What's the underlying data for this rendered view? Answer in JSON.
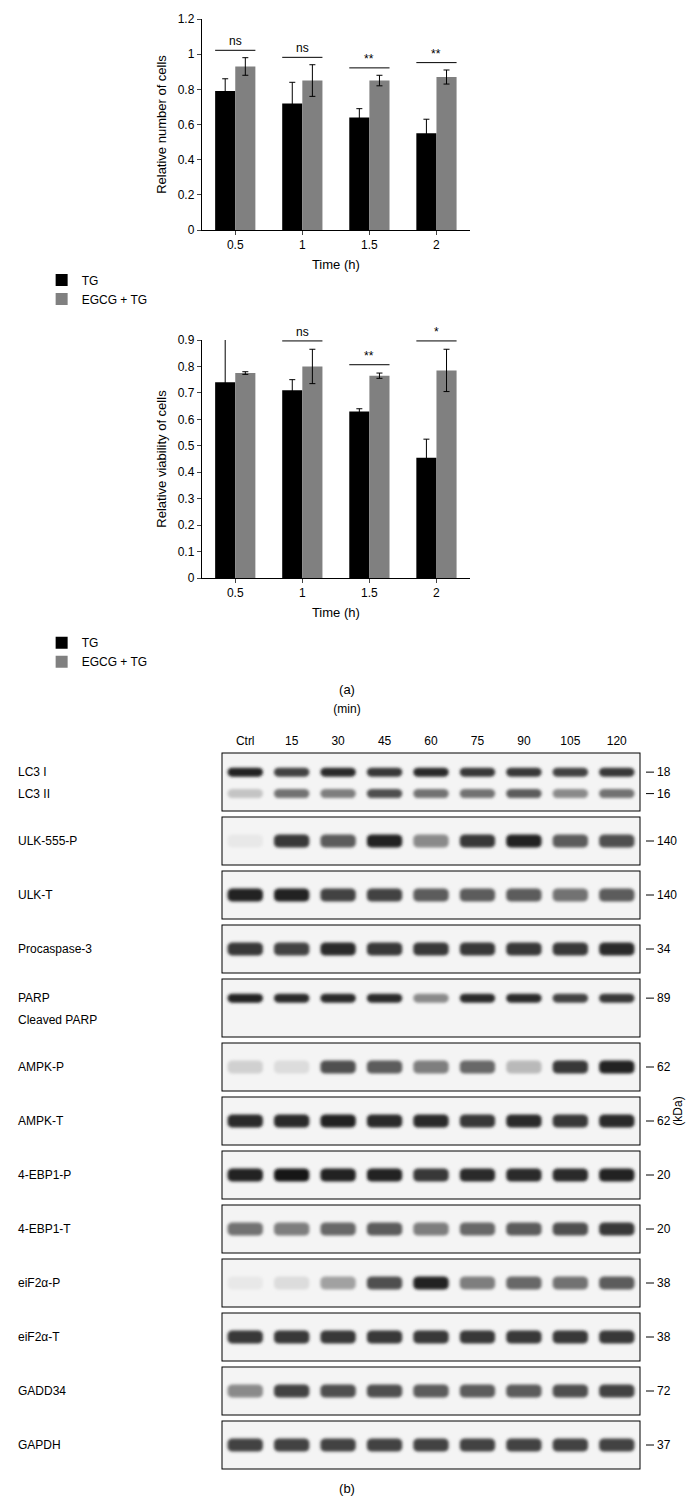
{
  "chart_data": [
    {
      "type": "bar",
      "categories": [
        "0.5",
        "1",
        "1.5",
        "2"
      ],
      "x_label": "Time (h)",
      "y_label": "Relative number of cells",
      "ylim": [
        0,
        1.2
      ],
      "yticks": [
        0,
        0.2,
        0.4,
        0.6,
        0.8,
        1,
        1.2
      ],
      "grid": false,
      "legend": "bottom",
      "series": [
        {
          "name": "TG",
          "color": "#000000",
          "values": [
            0.79,
            0.72,
            0.64,
            0.55
          ],
          "errors": [
            0.07,
            0.12,
            0.05,
            0.08
          ]
        },
        {
          "name": "EGCG + TG",
          "color": "#808080",
          "values": [
            0.93,
            0.85,
            0.85,
            0.87
          ],
          "errors": [
            0.05,
            0.09,
            0.03,
            0.04
          ]
        }
      ],
      "annotations": [
        {
          "category": "0.5",
          "text": "ns"
        },
        {
          "category": "1",
          "text": "ns"
        },
        {
          "category": "1.5",
          "text": "**"
        },
        {
          "category": "2",
          "text": "**"
        }
      ]
    },
    {
      "type": "bar",
      "categories": [
        "0.5",
        "1",
        "1.5",
        "2"
      ],
      "x_label": "Time (h)",
      "y_label": "Relative viability of cells",
      "ylim": [
        0,
        0.9
      ],
      "yticks": [
        0,
        0.1,
        0.2,
        0.3,
        0.4,
        0.5,
        0.6,
        0.7,
        0.8,
        0.9
      ],
      "grid": false,
      "legend": "bottom",
      "series": [
        {
          "name": "TG",
          "color": "#000000",
          "values": [
            0.74,
            0.71,
            0.63,
            0.455
          ],
          "errors": [
            0.17,
            0.04,
            0.01,
            0.07
          ]
        },
        {
          "name": "EGCG + TG",
          "color": "#808080",
          "values": [
            0.775,
            0.8,
            0.765,
            0.785
          ],
          "errors": [
            0.005,
            0.065,
            0.01,
            0.08
          ]
        }
      ],
      "annotations": [
        {
          "category": "0.5",
          "text": "ns"
        },
        {
          "category": "1",
          "text": "ns"
        },
        {
          "category": "1.5",
          "text": "**"
        },
        {
          "category": "2",
          "text": "*"
        }
      ]
    }
  ],
  "panel_labels": [
    "(a)",
    "(b)"
  ],
  "blot": {
    "lane_unit": "(min)",
    "lanes": [
      "Ctrl",
      "15",
      "30",
      "45",
      "60",
      "75",
      "90",
      "105",
      "120"
    ],
    "marker_unit": "(kDa)",
    "boxes": [
      [
        {
          "label": "LC3 I",
          "kda": 18,
          "intensity": [
            0.95,
            0.8,
            0.9,
            0.85,
            0.9,
            0.85,
            0.85,
            0.8,
            0.85
          ]
        },
        {
          "label": "LC3 II",
          "kda": 16,
          "intensity": [
            0.25,
            0.6,
            0.55,
            0.75,
            0.6,
            0.6,
            0.7,
            0.5,
            0.6
          ]
        }
      ],
      [
        {
          "label": "ULK-555-P",
          "kda": 140,
          "intensity": [
            0.1,
            0.85,
            0.7,
            0.95,
            0.5,
            0.85,
            0.95,
            0.7,
            0.75
          ]
        }
      ],
      [
        {
          "label": "ULK-T",
          "kda": 140,
          "intensity": [
            0.95,
            0.95,
            0.8,
            0.8,
            0.7,
            0.7,
            0.7,
            0.6,
            0.7
          ]
        }
      ],
      [
        {
          "label": "Procaspase-3",
          "kda": 34,
          "intensity": [
            0.85,
            0.8,
            0.9,
            0.85,
            0.85,
            0.85,
            0.85,
            0.85,
            0.9
          ]
        }
      ],
      [
        {
          "label": "PARP",
          "kda": 89,
          "intensity": [
            0.95,
            0.9,
            0.9,
            0.9,
            0.5,
            0.9,
            0.9,
            0.8,
            0.85
          ]
        },
        {
          "label": "Cleaved PARP"
        }
      ],
      [
        {
          "label": "AMPK-P",
          "kda": 62,
          "intensity": [
            0.2,
            0.15,
            0.75,
            0.7,
            0.55,
            0.65,
            0.3,
            0.85,
            0.95
          ]
        }
      ],
      [
        {
          "label": "AMPK-T",
          "kda": 62,
          "intensity": [
            0.9,
            0.9,
            0.95,
            0.9,
            0.9,
            0.85,
            0.9,
            0.85,
            0.9
          ]
        }
      ],
      [
        {
          "label": "4-EBP1-P",
          "kda": 20,
          "intensity": [
            0.95,
            1,
            0.95,
            0.95,
            0.85,
            0.9,
            0.9,
            0.9,
            0.95
          ]
        }
      ],
      [
        {
          "label": "4-EBP1-T",
          "kda": 20,
          "intensity": [
            0.6,
            0.55,
            0.65,
            0.7,
            0.55,
            0.65,
            0.7,
            0.75,
            0.85
          ]
        }
      ],
      [
        {
          "label": "eiF2α-P",
          "kda": 38,
          "intensity": [
            0.1,
            0.15,
            0.4,
            0.75,
            0.95,
            0.55,
            0.65,
            0.6,
            0.7
          ]
        }
      ],
      [
        {
          "label": "eiF2α-T",
          "kda": 38,
          "intensity": [
            0.85,
            0.85,
            0.85,
            0.85,
            0.85,
            0.85,
            0.85,
            0.85,
            0.85
          ]
        }
      ],
      [
        {
          "label": "GADD34",
          "kda": 72,
          "intensity": [
            0.5,
            0.8,
            0.75,
            0.75,
            0.7,
            0.7,
            0.7,
            0.75,
            0.8
          ]
        }
      ],
      [
        {
          "label": "GAPDH",
          "kda": 37,
          "intensity": [
            0.8,
            0.8,
            0.8,
            0.8,
            0.8,
            0.8,
            0.8,
            0.8,
            0.8
          ]
        }
      ]
    ]
  }
}
